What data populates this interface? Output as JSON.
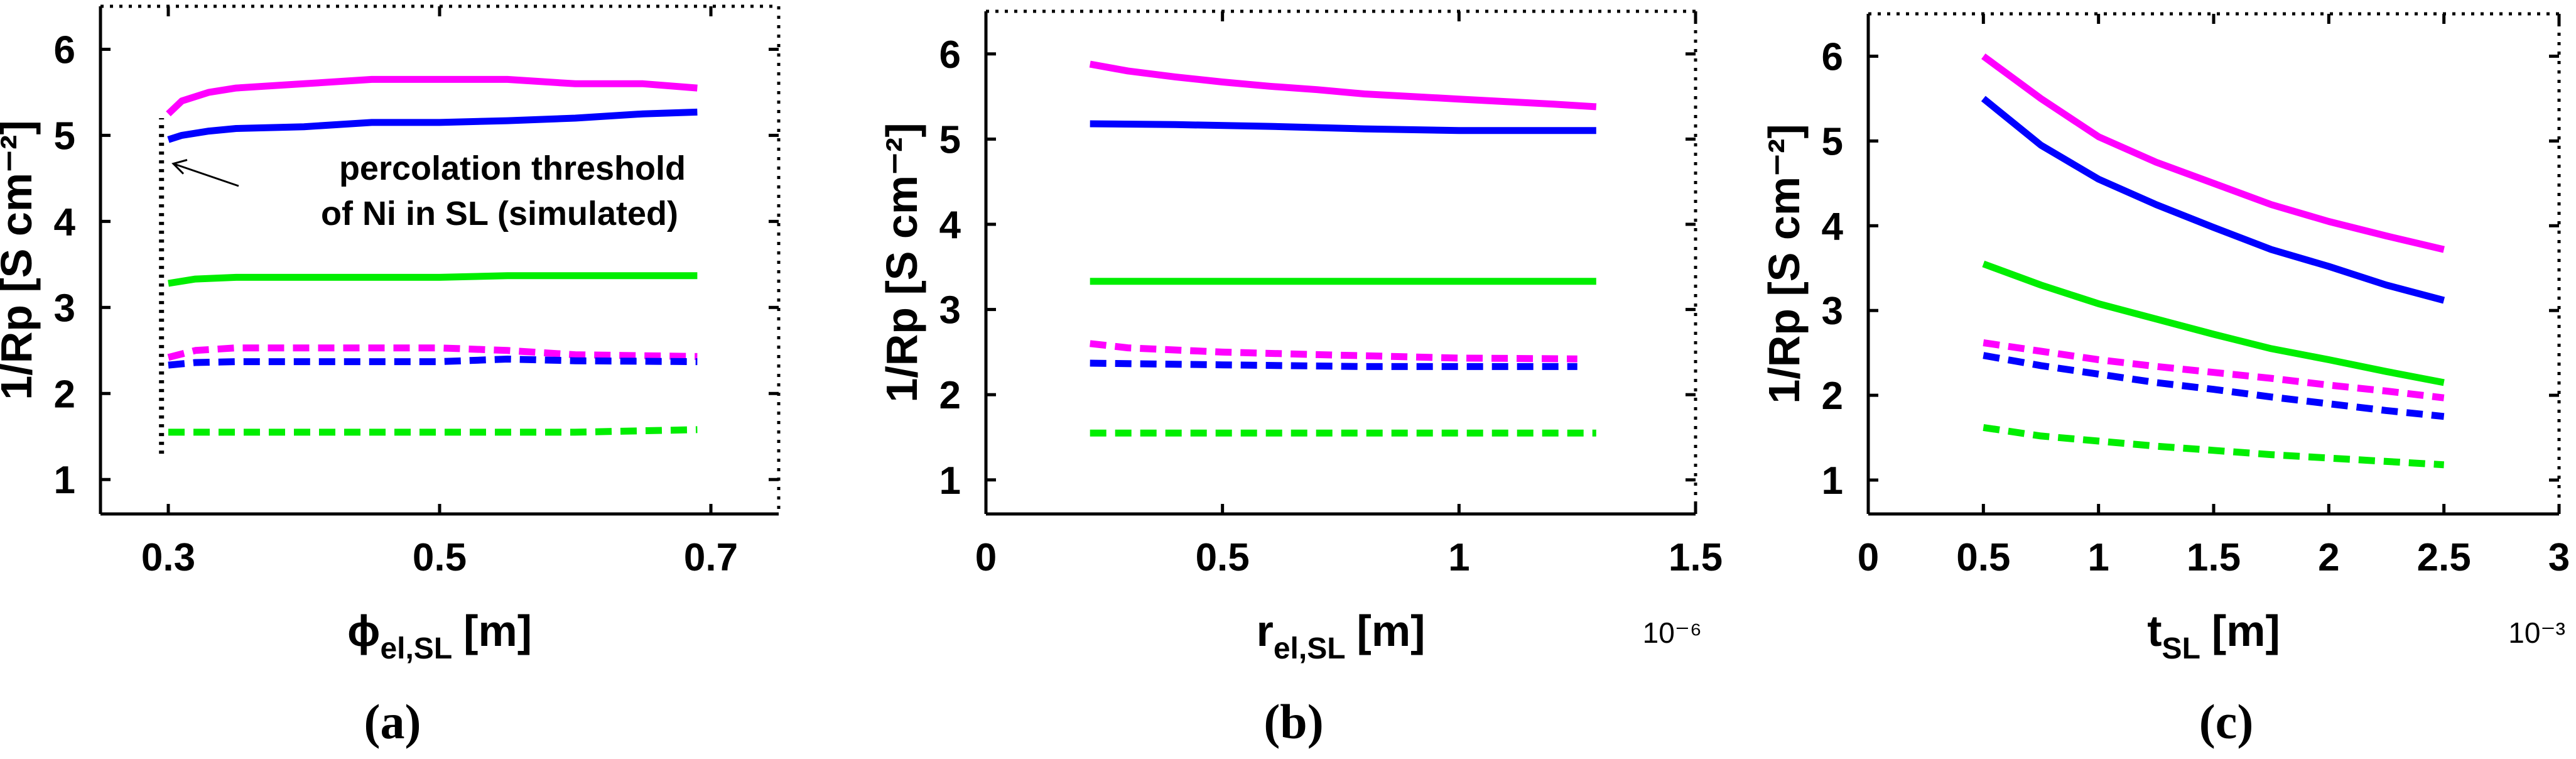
{
  "colors": {
    "magenta": "#ff00ff",
    "blue": "#0000ff",
    "green": "#00ee00"
  },
  "chart_data": [
    {
      "id": "a",
      "type": "line",
      "caption": {
        "open": "(",
        "letter": "a",
        "close": ")"
      },
      "xlabel": {
        "main": "ϕ",
        "sub": "el,SL",
        "unit": "[m]"
      },
      "ylabel": "1/Rp [S cm⁻²]",
      "xlim": [
        0.25,
        0.75
      ],
      "ylim": [
        0.6,
        6.5
      ],
      "xticks": [
        0.3,
        0.5,
        0.7
      ],
      "xtick_labels": [
        "0.3",
        "0.5",
        "0.7"
      ],
      "yticks": [
        1,
        2,
        3,
        4,
        5,
        6
      ],
      "ytick_labels": [
        "1",
        "2",
        "3",
        "4",
        "5",
        "6"
      ],
      "multiplier": "",
      "threshold": {
        "x": 0.295,
        "y_range": [
          1.3,
          5.2
        ]
      },
      "annotation": {
        "line1": "percolation threshold",
        "line2": "of Ni in SL (simulated)",
        "arrow_to": [
          0.3,
          4.7
        ]
      },
      "series": [
        {
          "name": "magenta-solid",
          "color": "magenta",
          "dash": false,
          "x": [
            0.3,
            0.31,
            0.33,
            0.35,
            0.4,
            0.45,
            0.5,
            0.55,
            0.6,
            0.65,
            0.69
          ],
          "y": [
            5.25,
            5.4,
            5.5,
            5.55,
            5.6,
            5.65,
            5.65,
            5.65,
            5.6,
            5.6,
            5.55
          ]
        },
        {
          "name": "blue-solid",
          "color": "blue",
          "dash": false,
          "x": [
            0.3,
            0.31,
            0.33,
            0.35,
            0.4,
            0.45,
            0.5,
            0.55,
            0.6,
            0.65,
            0.69
          ],
          "y": [
            4.95,
            5.0,
            5.05,
            5.08,
            5.1,
            5.15,
            5.15,
            5.17,
            5.2,
            5.25,
            5.27
          ]
        },
        {
          "name": "green-solid",
          "color": "green",
          "dash": false,
          "x": [
            0.3,
            0.32,
            0.35,
            0.4,
            0.5,
            0.55,
            0.6,
            0.69
          ],
          "y": [
            3.28,
            3.33,
            3.35,
            3.35,
            3.35,
            3.37,
            3.37,
            3.37
          ]
        },
        {
          "name": "magenta-dashed",
          "color": "magenta",
          "dash": true,
          "x": [
            0.3,
            0.32,
            0.35,
            0.4,
            0.5,
            0.55,
            0.6,
            0.69
          ],
          "y": [
            2.42,
            2.5,
            2.53,
            2.53,
            2.53,
            2.5,
            2.45,
            2.43
          ]
        },
        {
          "name": "blue-dashed",
          "color": "blue",
          "dash": true,
          "x": [
            0.3,
            0.32,
            0.35,
            0.4,
            0.5,
            0.55,
            0.6,
            0.69
          ],
          "y": [
            2.33,
            2.36,
            2.37,
            2.37,
            2.37,
            2.4,
            2.38,
            2.37
          ]
        },
        {
          "name": "green-dashed",
          "color": "green",
          "dash": true,
          "x": [
            0.3,
            0.4,
            0.5,
            0.6,
            0.69
          ],
          "y": [
            1.55,
            1.55,
            1.55,
            1.55,
            1.58
          ]
        }
      ]
    },
    {
      "id": "b",
      "type": "line",
      "caption": {
        "open": "(",
        "letter": "b",
        "close": ")"
      },
      "xlabel": {
        "main": "r",
        "sub": "el,SL",
        "unit": "[m]"
      },
      "ylabel": "1/Rp [S cm⁻²]",
      "xlim": [
        0,
        1.5
      ],
      "ylim": [
        0.6,
        6.5
      ],
      "xticks": [
        0,
        0.5,
        1,
        1.5
      ],
      "xtick_labels": [
        "0",
        "0.5",
        "1",
        "1.5"
      ],
      "yticks": [
        1,
        2,
        3,
        4,
        5,
        6
      ],
      "ytick_labels": [
        "1",
        "2",
        "3",
        "4",
        "5",
        "6"
      ],
      "multiplier": "10⁻⁶",
      "series": [
        {
          "name": "magenta-solid",
          "color": "magenta",
          "dash": false,
          "x": [
            0.22,
            0.3,
            0.4,
            0.5,
            0.6,
            0.7,
            0.8,
            0.9,
            1.0,
            1.1,
            1.2,
            1.29
          ],
          "y": [
            5.88,
            5.8,
            5.73,
            5.67,
            5.62,
            5.58,
            5.53,
            5.5,
            5.47,
            5.44,
            5.41,
            5.38
          ]
        },
        {
          "name": "blue-solid",
          "color": "blue",
          "dash": false,
          "x": [
            0.22,
            0.4,
            0.6,
            0.8,
            1.0,
            1.29
          ],
          "y": [
            5.18,
            5.17,
            5.15,
            5.12,
            5.1,
            5.1
          ]
        },
        {
          "name": "green-solid",
          "color": "green",
          "dash": false,
          "x": [
            0.22,
            0.6,
            1.0,
            1.29
          ],
          "y": [
            3.33,
            3.33,
            3.33,
            3.33
          ]
        },
        {
          "name": "magenta-dashed",
          "color": "magenta",
          "dash": true,
          "x": [
            0.22,
            0.3,
            0.5,
            0.7,
            1.0,
            1.25
          ],
          "y": [
            2.6,
            2.55,
            2.5,
            2.47,
            2.43,
            2.42
          ]
        },
        {
          "name": "blue-dashed",
          "color": "blue",
          "dash": true,
          "x": [
            0.22,
            0.5,
            0.8,
            1.0,
            1.25
          ],
          "y": [
            2.37,
            2.35,
            2.33,
            2.33,
            2.33
          ]
        },
        {
          "name": "green-dashed",
          "color": "green",
          "dash": true,
          "x": [
            0.22,
            0.6,
            1.0,
            1.29
          ],
          "y": [
            1.55,
            1.55,
            1.55,
            1.55
          ]
        }
      ]
    },
    {
      "id": "c",
      "type": "line",
      "caption": {
        "open": "(",
        "letter": "c",
        "close": ")"
      },
      "xlabel": {
        "main": "t",
        "sub": "SL",
        "unit": "[m]"
      },
      "ylabel": "1/Rp [S cm⁻²]",
      "xlim": [
        0,
        3
      ],
      "ylim": [
        0.6,
        6.5
      ],
      "xticks": [
        0,
        0.5,
        1,
        1.5,
        2,
        2.5,
        3
      ],
      "xtick_labels": [
        "0",
        "0.5",
        "1",
        "1.5",
        "2",
        "2.5",
        "3"
      ],
      "yticks": [
        1,
        2,
        3,
        4,
        5,
        6
      ],
      "ytick_labels": [
        "1",
        "2",
        "3",
        "4",
        "5",
        "6"
      ],
      "multiplier": "10⁻³",
      "series": [
        {
          "name": "magenta-solid",
          "color": "magenta",
          "dash": false,
          "x": [
            0.5,
            0.75,
            1.0,
            1.25,
            1.5,
            1.75,
            2.0,
            2.25,
            2.5
          ],
          "y": [
            6.0,
            5.5,
            5.05,
            4.75,
            4.5,
            4.25,
            4.05,
            3.88,
            3.72
          ]
        },
        {
          "name": "blue-solid",
          "color": "blue",
          "dash": false,
          "x": [
            0.5,
            0.75,
            1.0,
            1.25,
            1.5,
            1.75,
            2.0,
            2.25,
            2.5
          ],
          "y": [
            5.5,
            4.95,
            4.55,
            4.25,
            3.98,
            3.72,
            3.52,
            3.3,
            3.12
          ]
        },
        {
          "name": "green-solid",
          "color": "green",
          "dash": false,
          "x": [
            0.5,
            0.75,
            1.0,
            1.25,
            1.5,
            1.75,
            2.0,
            2.25,
            2.5
          ],
          "y": [
            3.55,
            3.3,
            3.08,
            2.9,
            2.72,
            2.55,
            2.42,
            2.28,
            2.15
          ]
        },
        {
          "name": "magenta-dashed",
          "color": "magenta",
          "dash": true,
          "x": [
            0.5,
            0.75,
            1.0,
            1.25,
            1.5,
            1.75,
            2.0,
            2.25,
            2.5
          ],
          "y": [
            2.62,
            2.52,
            2.42,
            2.34,
            2.27,
            2.2,
            2.12,
            2.05,
            1.97
          ]
        },
        {
          "name": "blue-dashed",
          "color": "blue",
          "dash": true,
          "x": [
            0.5,
            0.75,
            1.0,
            1.25,
            1.5,
            1.75,
            2.0,
            2.25,
            2.5
          ],
          "y": [
            2.47,
            2.35,
            2.25,
            2.15,
            2.07,
            1.98,
            1.9,
            1.82,
            1.75
          ]
        },
        {
          "name": "green-dashed",
          "color": "green",
          "dash": true,
          "x": [
            0.5,
            0.75,
            1.0,
            1.25,
            1.5,
            1.75,
            2.0,
            2.25,
            2.5
          ],
          "y": [
            1.62,
            1.52,
            1.46,
            1.4,
            1.35,
            1.3,
            1.26,
            1.22,
            1.18
          ]
        }
      ]
    }
  ]
}
